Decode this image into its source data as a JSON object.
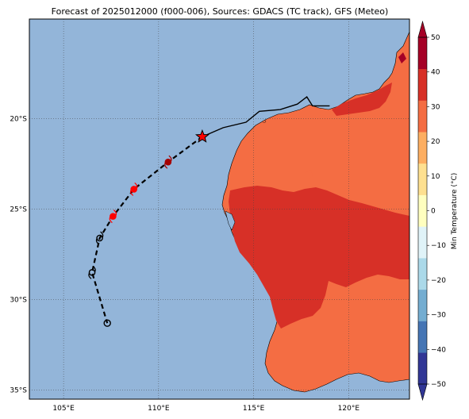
{
  "figure": {
    "title": "Forecast of 2025012000 (f000-006), Sources: GDACS (TC track), GFS (Meteo)"
  },
  "map": {
    "lon_range": [
      103.2,
      123.2
    ],
    "lat_range": [
      -35.5,
      -14.5
    ],
    "lon_ticks": [
      105,
      110,
      115,
      120
    ],
    "lon_tick_labels": [
      "105°E",
      "110°E",
      "115°E",
      "120°E"
    ],
    "lat_ticks": [
      -20,
      -25,
      -30,
      -35
    ],
    "lat_tick_labels": [
      "20°S",
      "25°S",
      "30°S",
      "35°S"
    ],
    "ocean_color": "#93b5d9",
    "gridlines": true
  },
  "colorbar": {
    "label": "Min Temperature (°C)",
    "ticks": [
      50,
      40,
      30,
      20,
      10,
      0,
      -10,
      -20,
      -30,
      -40,
      -50
    ],
    "tick_labels": [
      "50",
      "40",
      "30",
      "20",
      "10",
      "0",
      "−10",
      "−20",
      "−30",
      "−40",
      "−50"
    ],
    "colors": [
      "#313695",
      "#4575b4",
      "#74add1",
      "#abd9e9",
      "#e0f3f8",
      "#ffffbf",
      "#fee090",
      "#fdae61",
      "#f46d43",
      "#d73027",
      "#a50026"
    ]
  },
  "regions": [
    {
      "name": "warm-land",
      "temp_band": "20 to 30",
      "color": "#f46d43"
    },
    {
      "name": "hot-interior",
      "temp_band": "30 to 40",
      "color": "#d73027"
    }
  ],
  "track": {
    "points": [
      {
        "lon": 112.3,
        "lat": -21.0,
        "marker": "star",
        "color": "#ff0000"
      },
      {
        "lon": 110.5,
        "lat": -22.4,
        "marker": "cyclone",
        "color": "#a50000"
      },
      {
        "lon": 108.7,
        "lat": -23.9,
        "marker": "cyclone",
        "color": "#ff0000"
      },
      {
        "lon": 107.6,
        "lat": -25.4,
        "marker": "cyclone",
        "color": "#ff0000"
      },
      {
        "lon": 106.9,
        "lat": -26.6,
        "marker": "cyclone",
        "color": "#000000"
      },
      {
        "lon": 106.5,
        "lat": -28.5,
        "marker": "cyclone",
        "color": "#000000"
      },
      {
        "lon": 107.3,
        "lat": -31.3,
        "marker": "circle",
        "color": "#000000"
      }
    ],
    "history": [
      {
        "lon": 112.3,
        "lat": -21.0
      },
      {
        "lon": 113.4,
        "lat": -20.5
      },
      {
        "lon": 114.6,
        "lat": -20.2
      },
      {
        "lon": 115.3,
        "lat": -19.6
      },
      {
        "lon": 116.4,
        "lat": -19.5
      },
      {
        "lon": 117.3,
        "lat": -19.2
      },
      {
        "lon": 117.8,
        "lat": -18.8
      },
      {
        "lon": 118.1,
        "lat": -19.3
      },
      {
        "lon": 119.0,
        "lat": -19.3
      }
    ]
  }
}
